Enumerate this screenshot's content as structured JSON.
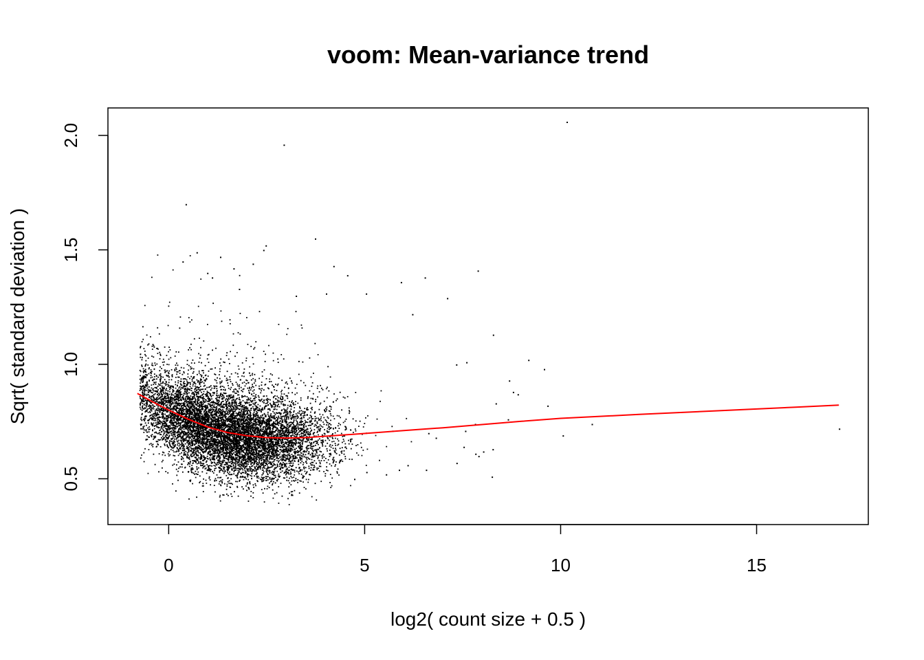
{
  "chart_data": {
    "type": "scatter",
    "title": "voom: Mean-variance trend",
    "xlabel": "log2( count size + 0.5 )",
    "ylabel": "Sqrt( standard deviation )",
    "xlim": [
      -1.55,
      17.85
    ],
    "ylim": [
      0.3,
      2.12
    ],
    "x_ticks": [
      0,
      5,
      10,
      15
    ],
    "x_tick_labels": [
      "0",
      "5",
      "10",
      "15"
    ],
    "y_ticks": [
      0.5,
      1.0,
      1.5,
      2.0
    ],
    "y_tick_labels": [
      "0.5",
      "1.0",
      "1.5",
      "2.0"
    ],
    "grid": false,
    "legend": "none",
    "colors": {
      "points": "#000000",
      "trend": "#ff0000",
      "frame": "#000000"
    },
    "series": [
      {
        "kind": "points",
        "cluster": {
          "count": 9000,
          "x_range": [
            -0.7,
            5.5
          ],
          "y_center": 0.7
        },
        "outliers": [
          [
            10.15,
            2.06
          ],
          [
            2.93,
            1.96
          ],
          [
            0.43,
            1.7
          ],
          [
            3.73,
            1.55
          ],
          [
            2.47,
            1.52
          ],
          [
            2.41,
            1.5
          ],
          [
            0.71,
            1.49
          ],
          [
            1.31,
            1.47
          ],
          [
            0.35,
            1.45
          ],
          [
            2.14,
            1.44
          ],
          [
            4.2,
            1.43
          ],
          [
            1.65,
            1.42
          ],
          [
            7.88,
            1.41
          ],
          [
            4.55,
            1.39
          ],
          [
            0.98,
            1.4
          ],
          [
            6.53,
            1.38
          ],
          [
            5.92,
            1.36
          ],
          [
            1.1,
            1.38
          ],
          [
            4.01,
            1.31
          ],
          [
            1.79,
            1.33
          ],
          [
            3.24,
            1.3
          ],
          [
            7.1,
            1.29
          ],
          [
            5.03,
            1.31
          ],
          [
            6.21,
            1.22
          ],
          [
            8.27,
            1.13
          ],
          [
            9.17,
            1.02
          ],
          [
            7.59,
            1.01
          ],
          [
            7.33,
            1.0
          ],
          [
            9.57,
            0.98
          ],
          [
            8.68,
            0.93
          ],
          [
            8.78,
            0.88
          ],
          [
            8.9,
            0.87
          ],
          [
            9.66,
            0.82
          ],
          [
            8.34,
            0.83
          ],
          [
            8.65,
            0.76
          ],
          [
            10.79,
            0.74
          ],
          [
            7.81,
            0.74
          ],
          [
            7.56,
            0.71
          ],
          [
            17.1,
            0.72
          ],
          [
            10.05,
            0.69
          ],
          [
            8.26,
            0.63
          ],
          [
            8.02,
            0.62
          ],
          [
            7.82,
            0.61
          ],
          [
            7.52,
            0.64
          ],
          [
            7.9,
            0.6
          ],
          [
            8.24,
            0.51
          ],
          [
            7.34,
            0.57
          ],
          [
            6.56,
            0.54
          ],
          [
            6.09,
            0.56
          ],
          [
            5.87,
            0.54
          ],
          [
            5.54,
            0.52
          ],
          [
            5.04,
            0.53
          ],
          [
            4.73,
            0.5
          ],
          [
            6.81,
            0.68
          ],
          [
            6.62,
            0.7
          ]
        ]
      },
      {
        "kind": "line",
        "name": "",
        "x": [
          -0.8,
          -0.4,
          0.0,
          0.5,
          1.0,
          1.5,
          2.0,
          2.5,
          3.0,
          3.5,
          4.0,
          4.5,
          5.0,
          6.0,
          7.0,
          8.0,
          9.0,
          10.0,
          12.0,
          14.0,
          16.0,
          17.1
        ],
        "y": [
          0.873,
          0.835,
          0.8,
          0.76,
          0.726,
          0.702,
          0.688,
          0.68,
          0.678,
          0.68,
          0.686,
          0.692,
          0.698,
          0.711,
          0.723,
          0.737,
          0.751,
          0.764,
          0.781,
          0.797,
          0.813,
          0.822
        ]
      }
    ]
  }
}
